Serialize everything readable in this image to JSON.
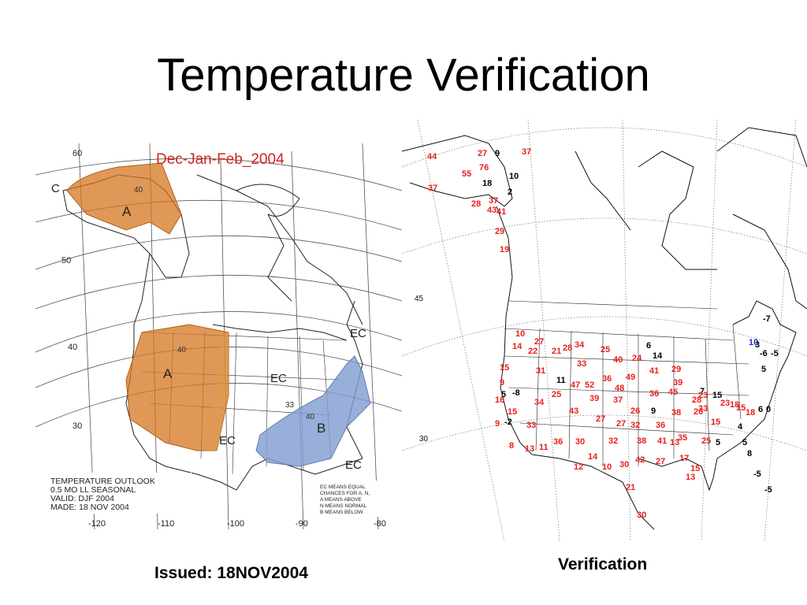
{
  "slide": {
    "title": "Temperature Verification",
    "left_caption": "Issued: 18NOV2004",
    "right_caption": "Verification"
  },
  "outlook_map": {
    "title": "Dec-Jan-Feb_2004",
    "lat_labels": [
      "60",
      "50",
      "40",
      "30"
    ],
    "lon_labels": [
      "-120",
      "-110",
      "-100",
      "-90",
      "-80"
    ],
    "regions": [
      {
        "label": "A",
        "meaning": "ABOVE",
        "color": "#d0702a",
        "probs": [
          "40"
        ]
      },
      {
        "label": "A",
        "meaning": "ABOVE",
        "color": "#d0702a",
        "probs": [
          "40"
        ]
      },
      {
        "label": "B",
        "meaning": "BELOW",
        "color": "#7e9ccf",
        "probs": [
          "33",
          "40"
        ]
      }
    ],
    "ec_labels": [
      "C",
      "EC",
      "EC",
      "EC",
      "EC"
    ],
    "info_block": [
      "TEMPERATURE OUTLOOK",
      "0.5 MO LL SEASONAL",
      "VALID: DJF 2004",
      "MADE: 18 NOV 2004"
    ],
    "legend": [
      "EC MEANS EQUAL",
      "CHANCES FOR A, N,",
      "A MEANS ABOVE",
      "N MEANS NORMAL",
      "B MEANS BELOW"
    ]
  },
  "verification_map": {
    "lat_labels": [
      "45",
      "30"
    ],
    "colors": {
      "red": "#e8201e",
      "black": "#000000",
      "blue": "#1a2fd0"
    },
    "stations": [
      {
        "v": "44",
        "c": "red"
      },
      {
        "v": "27",
        "c": "red"
      },
      {
        "v": "9",
        "c": "black"
      },
      {
        "v": "37",
        "c": "red"
      },
      {
        "v": "55",
        "c": "red"
      },
      {
        "v": "76",
        "c": "red"
      },
      {
        "v": "18",
        "c": "black"
      },
      {
        "v": "10",
        "c": "black"
      },
      {
        "v": "37",
        "c": "red"
      },
      {
        "v": "2",
        "c": "black"
      },
      {
        "v": "28",
        "c": "red"
      },
      {
        "v": "37",
        "c": "red"
      },
      {
        "v": "43",
        "c": "red"
      },
      {
        "v": "41",
        "c": "red"
      },
      {
        "v": "29",
        "c": "red"
      },
      {
        "v": "19",
        "c": "red"
      },
      {
        "v": "10",
        "c": "red"
      },
      {
        "v": "27",
        "c": "red"
      },
      {
        "v": "14",
        "c": "red"
      },
      {
        "v": "22",
        "c": "red"
      },
      {
        "v": "21",
        "c": "red"
      },
      {
        "v": "28",
        "c": "red"
      },
      {
        "v": "34",
        "c": "red"
      },
      {
        "v": "25",
        "c": "red"
      },
      {
        "v": "6",
        "c": "black"
      },
      {
        "v": "14",
        "c": "black"
      },
      {
        "v": "40",
        "c": "red"
      },
      {
        "v": "24",
        "c": "red"
      },
      {
        "v": "33",
        "c": "red"
      },
      {
        "v": "15",
        "c": "red"
      },
      {
        "v": "31",
        "c": "red"
      },
      {
        "v": "11",
        "c": "black"
      },
      {
        "v": "9",
        "c": "red"
      },
      {
        "v": "47",
        "c": "red"
      },
      {
        "v": "52",
        "c": "red"
      },
      {
        "v": "36",
        "c": "red"
      },
      {
        "v": "49",
        "c": "red"
      },
      {
        "v": "41",
        "c": "red"
      },
      {
        "v": "29",
        "c": "red"
      },
      {
        "v": "48",
        "c": "red"
      },
      {
        "v": "5",
        "c": "black"
      },
      {
        "v": "-8",
        "c": "black"
      },
      {
        "v": "25",
        "c": "red"
      },
      {
        "v": "39",
        "c": "red"
      },
      {
        "v": "37",
        "c": "red"
      },
      {
        "v": "36",
        "c": "red"
      },
      {
        "v": "45",
        "c": "red"
      },
      {
        "v": "39",
        "c": "red"
      },
      {
        "v": "16",
        "c": "red"
      },
      {
        "v": "34",
        "c": "red"
      },
      {
        "v": "15",
        "c": "red"
      },
      {
        "v": "43",
        "c": "red"
      },
      {
        "v": "27",
        "c": "red"
      },
      {
        "v": "26",
        "c": "red"
      },
      {
        "v": "9",
        "c": "black"
      },
      {
        "v": "38",
        "c": "red"
      },
      {
        "v": "9",
        "c": "red"
      },
      {
        "v": "-2",
        "c": "black"
      },
      {
        "v": "33",
        "c": "red"
      },
      {
        "v": "27",
        "c": "red"
      },
      {
        "v": "32",
        "c": "red"
      },
      {
        "v": "36",
        "c": "red"
      },
      {
        "v": "36",
        "c": "red"
      },
      {
        "v": "30",
        "c": "red"
      },
      {
        "v": "32",
        "c": "red"
      },
      {
        "v": "38",
        "c": "red"
      },
      {
        "v": "41",
        "c": "red"
      },
      {
        "v": "13",
        "c": "red"
      },
      {
        "v": "35",
        "c": "red"
      },
      {
        "v": "25",
        "c": "red"
      },
      {
        "v": "8",
        "c": "red"
      },
      {
        "v": "13",
        "c": "red"
      },
      {
        "v": "11",
        "c": "red"
      },
      {
        "v": "14",
        "c": "red"
      },
      {
        "v": "12",
        "c": "red"
      },
      {
        "v": "10",
        "c": "red"
      },
      {
        "v": "30",
        "c": "red"
      },
      {
        "v": "42",
        "c": "red"
      },
      {
        "v": "27",
        "c": "red"
      },
      {
        "v": "17",
        "c": "red"
      },
      {
        "v": "15",
        "c": "red"
      },
      {
        "v": "13",
        "c": "red"
      },
      {
        "v": "21",
        "c": "red"
      },
      {
        "v": "30",
        "c": "red"
      },
      {
        "v": "7",
        "c": "black"
      },
      {
        "v": "15",
        "c": "black"
      },
      {
        "v": "28",
        "c": "red"
      },
      {
        "v": "23",
        "c": "red"
      },
      {
        "v": "33",
        "c": "red"
      },
      {
        "v": "26",
        "c": "red"
      },
      {
        "v": "23",
        "c": "red"
      },
      {
        "v": "18",
        "c": "red"
      },
      {
        "v": "15",
        "c": "red"
      },
      {
        "v": "18",
        "c": "red"
      },
      {
        "v": "15",
        "c": "red"
      },
      {
        "v": "5",
        "c": "black"
      },
      {
        "v": "6",
        "c": "black"
      },
      {
        "v": "0",
        "c": "black"
      },
      {
        "v": "4",
        "c": "black"
      },
      {
        "v": "5",
        "c": "black"
      },
      {
        "v": "8",
        "c": "black"
      },
      {
        "v": "-5",
        "c": "black"
      },
      {
        "v": "-5",
        "c": "black"
      },
      {
        "v": "10",
        "c": "blue"
      },
      {
        "v": "-6",
        "c": "black"
      },
      {
        "v": "-5",
        "c": "black"
      },
      {
        "v": "-7",
        "c": "black"
      },
      {
        "v": "3",
        "c": "black"
      },
      {
        "v": "5",
        "c": "black"
      }
    ]
  }
}
